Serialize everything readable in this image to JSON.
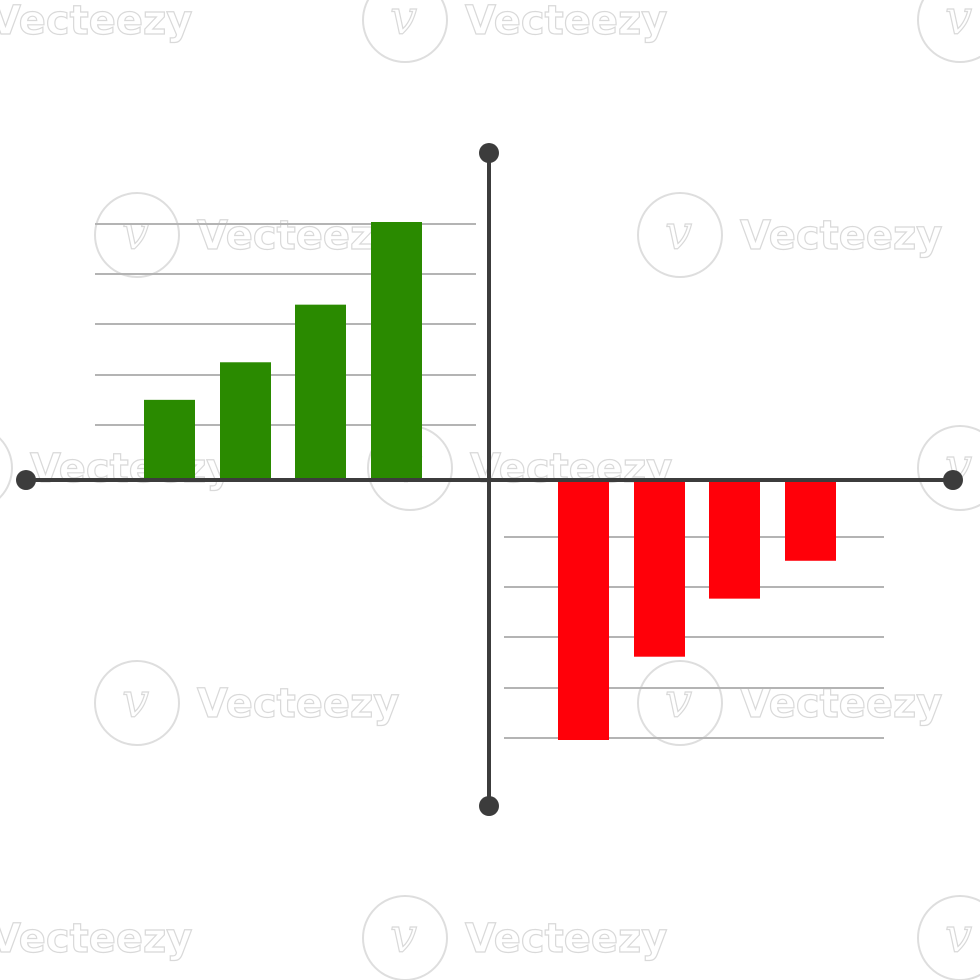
{
  "watermark": {
    "text": "Vecteezy",
    "icon": "vecteezy-logo-icon"
  },
  "colors": {
    "positive": "#2a8a00",
    "negative": "#ff0009",
    "axis": "#3c3c3c",
    "grid": "#b4b4b4"
  },
  "chart_data": [
    {
      "type": "bar",
      "quadrant": "top-left",
      "categories": [
        "",
        "",
        "",
        ""
      ],
      "values": [
        1.6,
        2.35,
        3.5,
        5.15
      ],
      "ylim": [
        0,
        5.15
      ],
      "grid": true,
      "color": "#2a8a00"
    },
    {
      "type": "bar",
      "quadrant": "bottom-right",
      "categories": [
        "",
        "",
        "",
        ""
      ],
      "values": [
        -5.15,
        -3.5,
        -2.35,
        -1.6
      ],
      "ylim": [
        -5.15,
        0
      ],
      "grid": true,
      "color": "#ff0009"
    }
  ]
}
